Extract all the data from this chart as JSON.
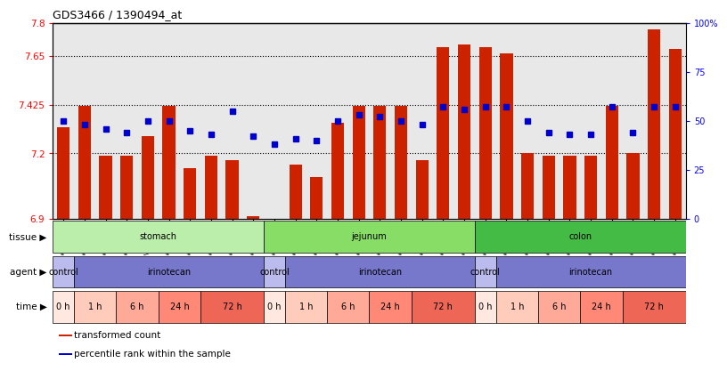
{
  "title": "GDS3466 / 1390494_at",
  "samples": [
    "GSM297524",
    "GSM297525",
    "GSM297526",
    "GSM297527",
    "GSM297528",
    "GSM297529",
    "GSM297530",
    "GSM297531",
    "GSM297532",
    "GSM297533",
    "GSM297534",
    "GSM297535",
    "GSM297536",
    "GSM297537",
    "GSM297538",
    "GSM297539",
    "GSM297540",
    "GSM297541",
    "GSM297542",
    "GSM297543",
    "GSM297544",
    "GSM297545",
    "GSM297546",
    "GSM297547",
    "GSM297548",
    "GSM297549",
    "GSM297550",
    "GSM297551",
    "GSM297552",
    "GSM297553"
  ],
  "bar_values": [
    7.32,
    7.42,
    7.19,
    7.19,
    7.28,
    7.42,
    7.13,
    7.19,
    7.17,
    6.91,
    6.9,
    7.15,
    7.09,
    7.34,
    7.42,
    7.42,
    7.42,
    7.17,
    7.69,
    7.7,
    7.69,
    7.66,
    7.2,
    7.19,
    7.19,
    7.19,
    7.42,
    7.2,
    7.77,
    7.68
  ],
  "percentile_values": [
    50,
    48,
    46,
    44,
    50,
    50,
    45,
    43,
    55,
    42,
    38,
    41,
    40,
    50,
    53,
    52,
    50,
    48,
    57,
    56,
    57,
    57,
    50,
    44,
    43,
    43,
    57,
    44,
    57,
    57
  ],
  "y_min": 6.9,
  "y_max": 7.8,
  "y_ticks": [
    6.9,
    7.2,
    7.425,
    7.65,
    7.8
  ],
  "y_tick_labels": [
    "6.9",
    "7.2",
    "7.425",
    "7.65",
    "7.8"
  ],
  "right_y_ticks": [
    0,
    25,
    50,
    75,
    100
  ],
  "right_y_tick_labels": [
    "0",
    "25",
    "50",
    "75",
    "100%"
  ],
  "bar_color": "#cc2200",
  "dot_color": "#0000cc",
  "plot_bg_color": "#e8e8e8",
  "tissue_regions": [
    {
      "label": "stomach",
      "start": 0,
      "end": 9,
      "color": "#bbeeaa"
    },
    {
      "label": "jejunum",
      "start": 10,
      "end": 19,
      "color": "#88dd66"
    },
    {
      "label": "colon",
      "start": 20,
      "end": 29,
      "color": "#44bb44"
    }
  ],
  "agent_regions": [
    {
      "label": "control",
      "start": 0,
      "end": 0,
      "color": "#bbbbee"
    },
    {
      "label": "irinotecan",
      "start": 1,
      "end": 9,
      "color": "#7777cc"
    },
    {
      "label": "control",
      "start": 10,
      "end": 10,
      "color": "#bbbbee"
    },
    {
      "label": "irinotecan",
      "start": 11,
      "end": 19,
      "color": "#7777cc"
    },
    {
      "label": "control",
      "start": 20,
      "end": 20,
      "color": "#bbbbee"
    },
    {
      "label": "irinotecan",
      "start": 21,
      "end": 29,
      "color": "#7777cc"
    }
  ],
  "time_regions": [
    {
      "label": "0 h",
      "start": 0,
      "end": 0,
      "color": "#ffe8e0"
    },
    {
      "label": "1 h",
      "start": 1,
      "end": 2,
      "color": "#ffccbb"
    },
    {
      "label": "6 h",
      "start": 3,
      "end": 4,
      "color": "#ffaa99"
    },
    {
      "label": "24 h",
      "start": 5,
      "end": 6,
      "color": "#ff8877"
    },
    {
      "label": "72 h",
      "start": 7,
      "end": 9,
      "color": "#ee6655"
    },
    {
      "label": "0 h",
      "start": 10,
      "end": 10,
      "color": "#ffe8e0"
    },
    {
      "label": "1 h",
      "start": 11,
      "end": 12,
      "color": "#ffccbb"
    },
    {
      "label": "6 h",
      "start": 13,
      "end": 14,
      "color": "#ffaa99"
    },
    {
      "label": "24 h",
      "start": 15,
      "end": 16,
      "color": "#ff8877"
    },
    {
      "label": "72 h",
      "start": 17,
      "end": 19,
      "color": "#ee6655"
    },
    {
      "label": "0 h",
      "start": 20,
      "end": 20,
      "color": "#ffe8e0"
    },
    {
      "label": "1 h",
      "start": 21,
      "end": 22,
      "color": "#ffccbb"
    },
    {
      "label": "6 h",
      "start": 23,
      "end": 24,
      "color": "#ffaa99"
    },
    {
      "label": "24 h",
      "start": 25,
      "end": 26,
      "color": "#ff8877"
    },
    {
      "label": "72 h",
      "start": 27,
      "end": 29,
      "color": "#ee6655"
    }
  ],
  "legend_items": [
    {
      "label": "transformed count",
      "color": "#cc2200"
    },
    {
      "label": "percentile rank within the sample",
      "color": "#0000cc"
    }
  ],
  "row_labels": [
    "tissue",
    "agent",
    "time"
  ]
}
